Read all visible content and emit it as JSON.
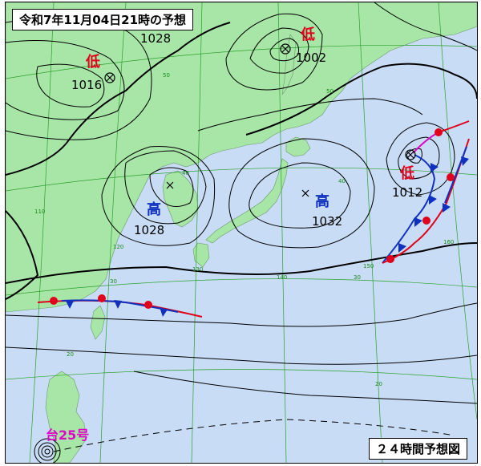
{
  "title": "令和7年11月04日21時の予想",
  "caption": "２４時間予想図",
  "isobar_labels": [
    "1028",
    "1016",
    "1002",
    "1028",
    "1032",
    "1012"
  ],
  "systems": [
    {
      "kind": "low",
      "label": "低",
      "pressure": "1016"
    },
    {
      "kind": "low",
      "label": "低",
      "pressure": "1002"
    },
    {
      "kind": "high",
      "label": "高",
      "pressure": "1028"
    },
    {
      "kind": "high",
      "label": "高",
      "pressure": "1032"
    },
    {
      "kind": "low",
      "label": "低",
      "pressure": "1012"
    }
  ],
  "typhoon": {
    "label": "台25号"
  },
  "latitude_labels": [
    "50",
    "40",
    "30",
    "20",
    "50",
    "40",
    "30",
    "20"
  ],
  "longitude_labels": [
    "110",
    "120",
    "130",
    "140",
    "150",
    "160"
  ],
  "colors": {
    "sea": "#c8dcf5",
    "land": "#a8e6a8",
    "isobar": "#000000",
    "grid": "#2aa02a",
    "warm_front": "#e0001b",
    "cold_front": "#1030c0",
    "occluded_front": "#e000c8",
    "low_label": "#e0001b",
    "high_label": "#1030c0",
    "typhoon_label": "#e000c8"
  }
}
